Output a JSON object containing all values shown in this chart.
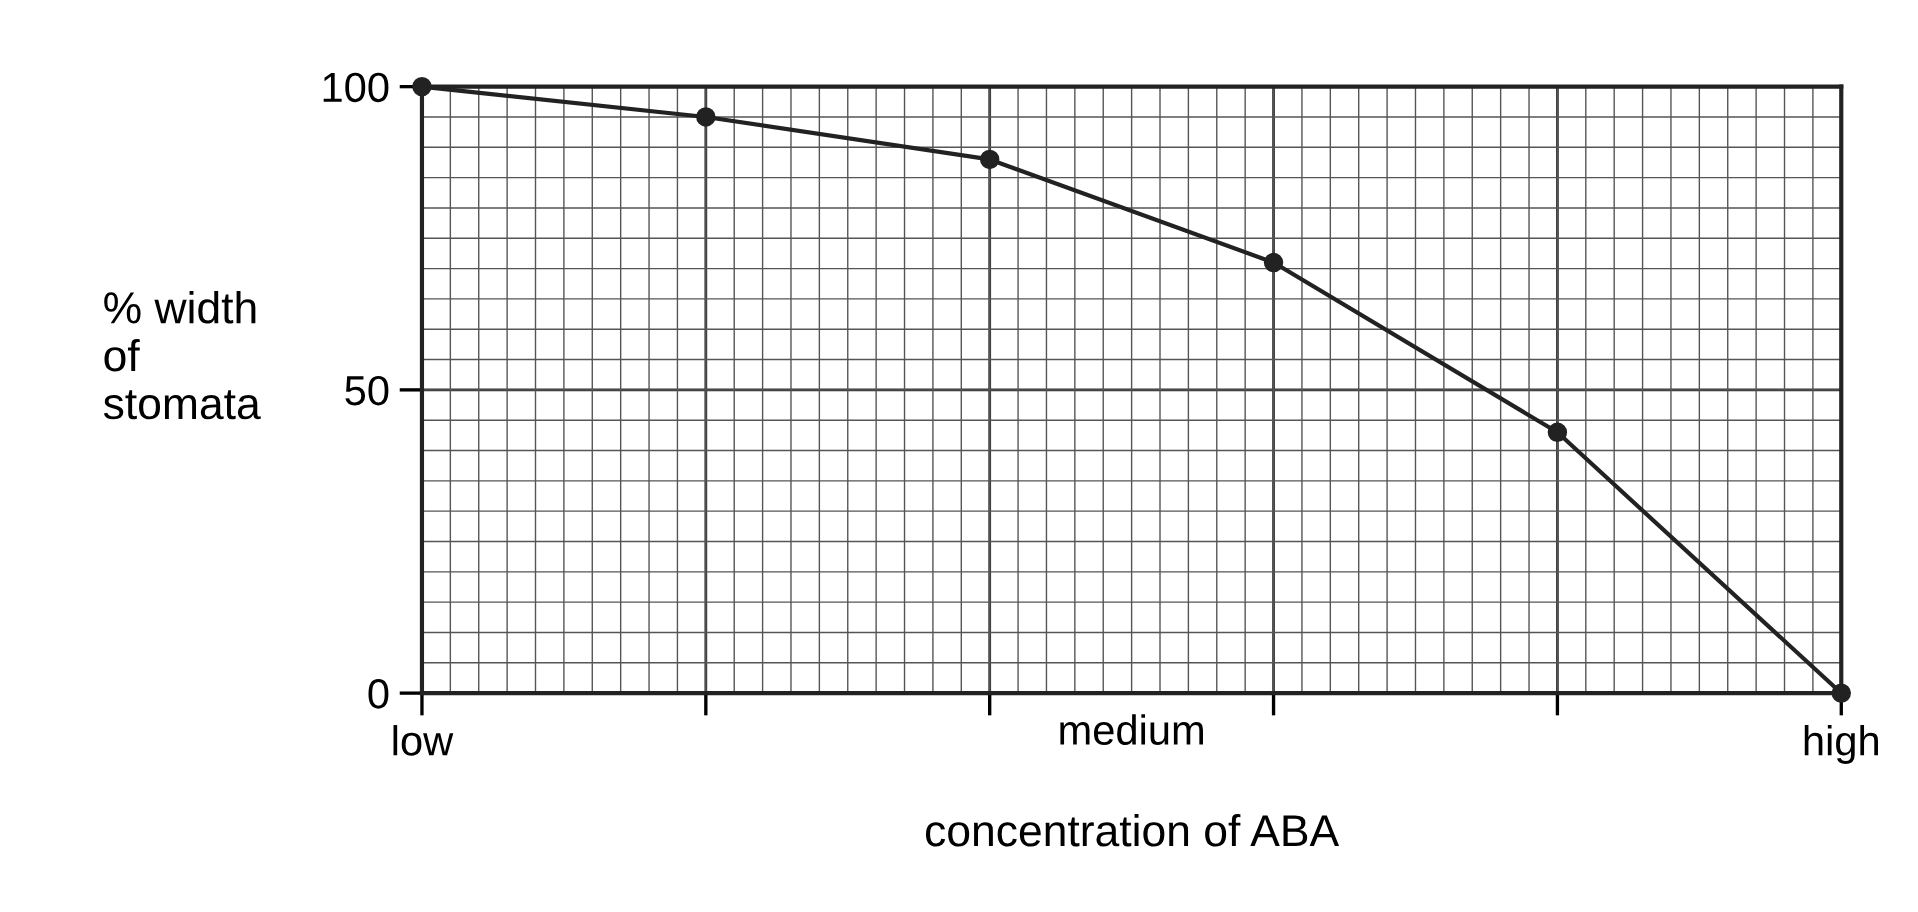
{
  "chart_data": {
    "type": "line",
    "xlabel": "concentration of ABA",
    "ylabel": "% width\nof\nstomata",
    "categories": [
      "low",
      null,
      null,
      null,
      null,
      "high"
    ],
    "annotations": [
      "medium"
    ],
    "series": [
      {
        "color": "#222222",
        "values": [
          100,
          95,
          88,
          71,
          43,
          0
        ]
      }
    ],
    "ylim": [
      0,
      100
    ],
    "yticks": [
      0,
      50,
      100
    ],
    "grid": true,
    "marker": "circle",
    "line_style": "solid"
  }
}
